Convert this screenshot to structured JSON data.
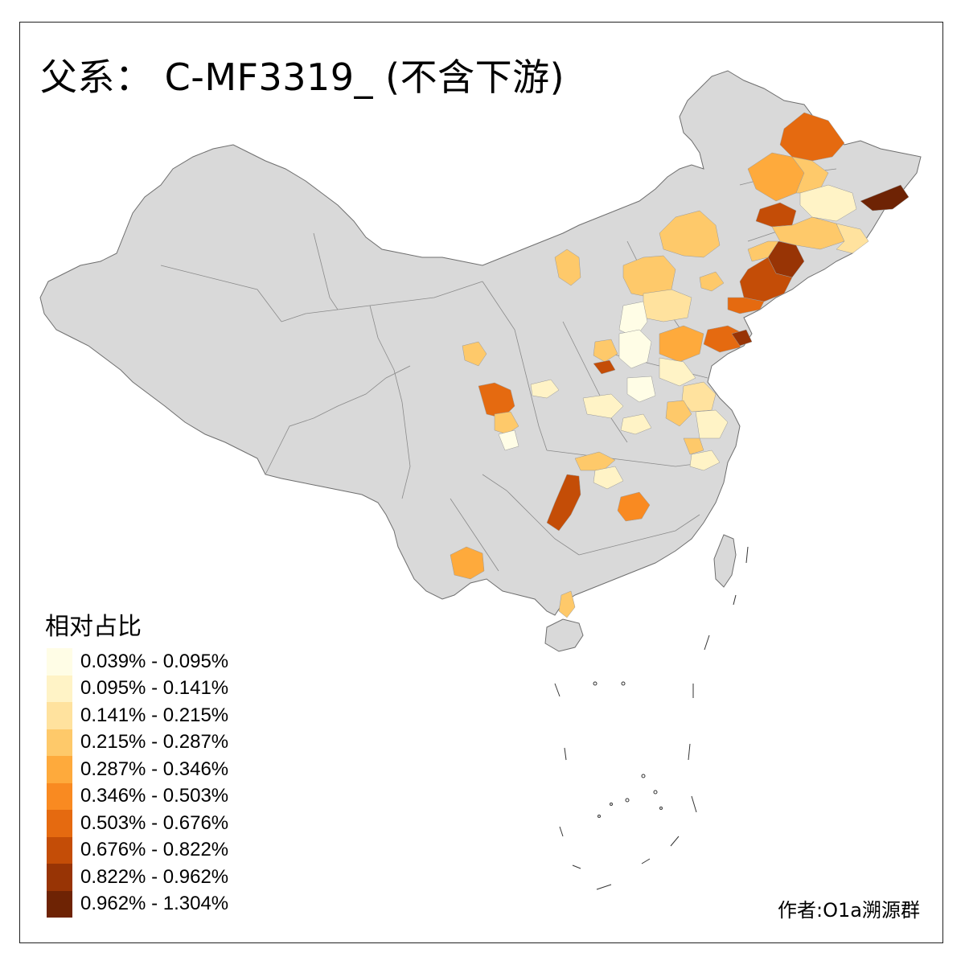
{
  "title": "父系： C-MF3319_ (不含下游)",
  "legend": {
    "title": "相对占比",
    "classes": [
      {
        "label": "0.039% - 0.095%",
        "color": "#fffde6"
      },
      {
        "label": "0.095% - 0.141%",
        "color": "#fff3c6"
      },
      {
        "label": "0.141% - 0.215%",
        "color": "#ffe29e"
      },
      {
        "label": "0.215% - 0.287%",
        "color": "#fec96a"
      },
      {
        "label": "0.287% - 0.346%",
        "color": "#feaa3c"
      },
      {
        "label": "0.346% - 0.503%",
        "color": "#f98a21"
      },
      {
        "label": "0.503% - 0.676%",
        "color": "#e56a10"
      },
      {
        "label": "0.676% - 0.822%",
        "color": "#c44d07"
      },
      {
        "label": "0.822% - 0.962%",
        "color": "#983405"
      },
      {
        "label": "0.962% - 1.304%",
        "color": "#6e2304"
      }
    ]
  },
  "credit": "作者:O1a溯源群",
  "colors": {
    "land": "#d9d9d9",
    "border": "#7a7a7a",
    "frame": "#222222"
  }
}
